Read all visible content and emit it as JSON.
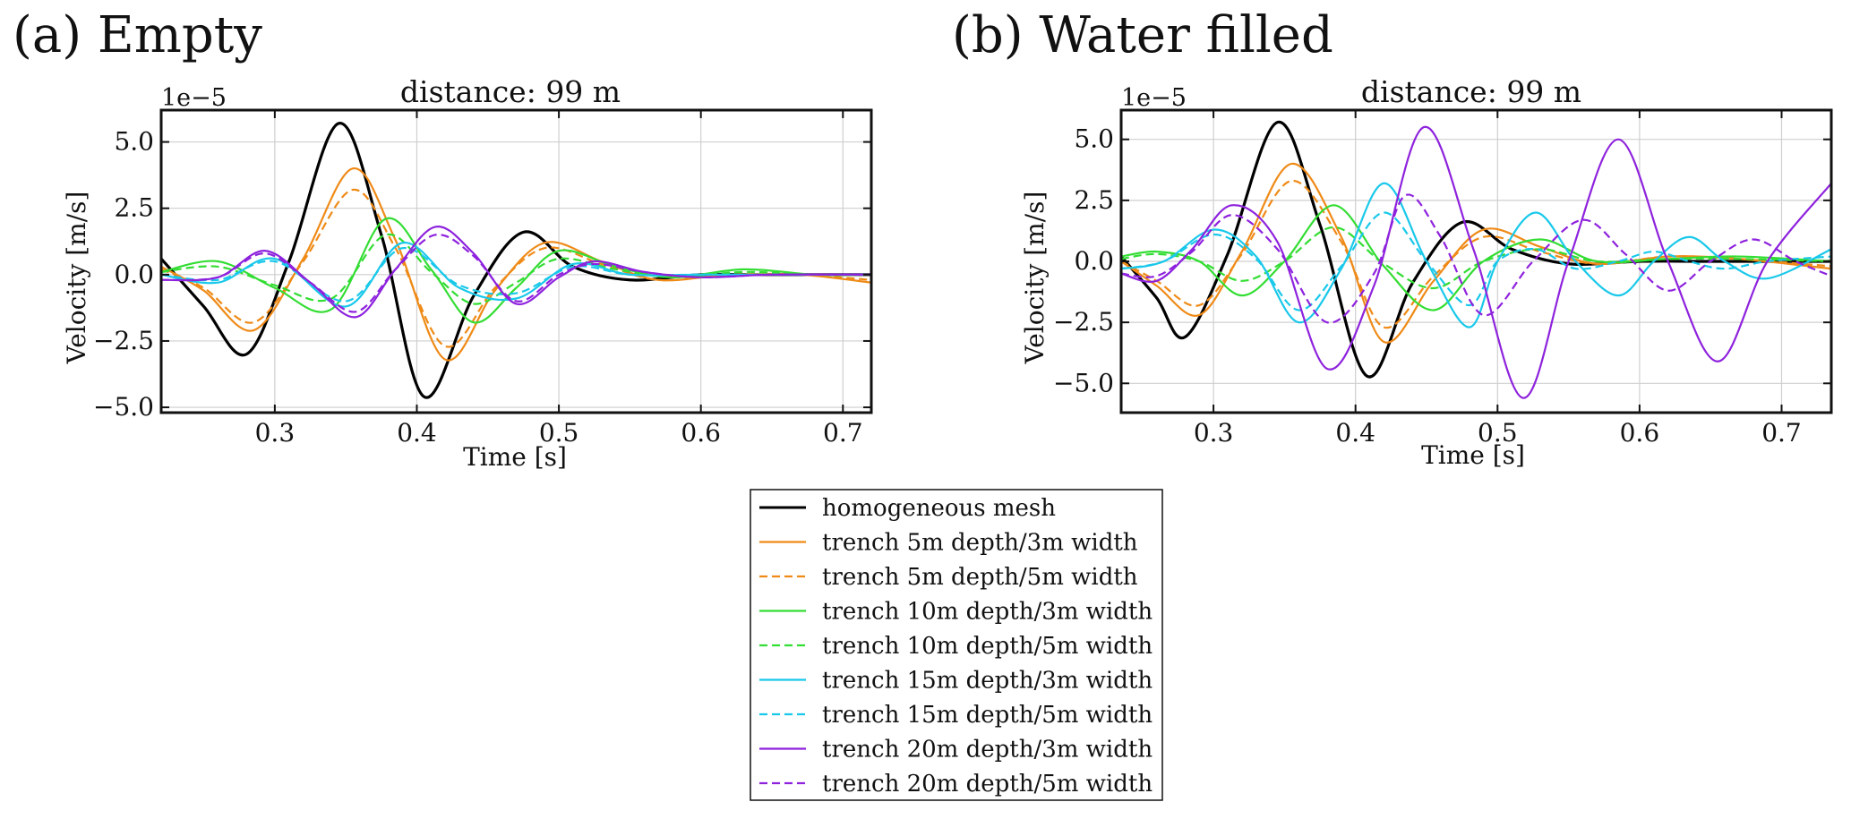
{
  "chart_data": [
    {
      "type": "line",
      "panel_label": "(a) Empty",
      "title": "distance: 99 m",
      "xlabel": "Time [s]",
      "ylabel": "Velocity [m/s]",
      "scale_label": "1e−5",
      "xlim": [
        0.22,
        0.72
      ],
      "ylim": [
        -5.2,
        6.2
      ],
      "xticks": [
        0.3,
        0.4,
        0.5,
        0.6,
        0.7
      ],
      "xtick_labels": [
        "0.3",
        "0.4",
        "0.5",
        "0.6",
        "0.7"
      ],
      "yticks": [
        -5.0,
        -2.5,
        0.0,
        2.5,
        5.0
      ],
      "ytick_labels": [
        "−5.0",
        "−2.5",
        "0.0",
        "2.5",
        "5.0"
      ],
      "grid": true,
      "series": [
        {
          "name": "homogeneous mesh",
          "color": "#000000",
          "dash": "solid",
          "x": [
            0.22,
            0.25,
            0.28,
            0.31,
            0.345,
            0.375,
            0.405,
            0.44,
            0.475,
            0.51,
            0.55,
            0.6,
            0.65,
            0.72
          ],
          "y": [
            0.6,
            -1.2,
            -3.0,
            0.5,
            5.7,
            1.5,
            -4.6,
            -0.8,
            1.6,
            0.3,
            -0.2,
            0.0,
            0.0,
            0.0
          ]
        },
        {
          "name": "trench 5m depth/3m width",
          "color": "#ef8a17",
          "dash": "solid",
          "x": [
            0.22,
            0.25,
            0.285,
            0.32,
            0.355,
            0.385,
            0.42,
            0.455,
            0.49,
            0.53,
            0.57,
            0.62,
            0.67,
            0.72
          ],
          "y": [
            0.3,
            -0.6,
            -2.1,
            0.6,
            4.0,
            1.3,
            -3.2,
            -0.6,
            1.2,
            0.5,
            -0.2,
            0.0,
            0.0,
            -0.3
          ]
        },
        {
          "name": "trench 5m depth/5m width",
          "color": "#ef8a17",
          "dash": "dashed",
          "x": [
            0.22,
            0.25,
            0.285,
            0.32,
            0.355,
            0.385,
            0.42,
            0.455,
            0.49,
            0.53,
            0.57,
            0.62,
            0.67,
            0.72
          ],
          "y": [
            0.2,
            -0.5,
            -1.8,
            0.5,
            3.2,
            1.0,
            -2.7,
            -0.5,
            1.0,
            0.4,
            -0.2,
            0.0,
            0.0,
            -0.2
          ]
        },
        {
          "name": "trench 10m depth/3m width",
          "color": "#33dd33",
          "dash": "solid",
          "x": [
            0.22,
            0.26,
            0.3,
            0.34,
            0.378,
            0.41,
            0.44,
            0.47,
            0.5,
            0.54,
            0.58,
            0.63,
            0.68,
            0.72
          ],
          "y": [
            0.1,
            0.5,
            -0.5,
            -1.3,
            2.1,
            0.2,
            -1.8,
            -0.5,
            0.9,
            0.3,
            -0.1,
            0.2,
            0.0,
            0.0
          ]
        },
        {
          "name": "trench 10m depth/5m width",
          "color": "#33dd33",
          "dash": "dashed",
          "x": [
            0.22,
            0.26,
            0.3,
            0.34,
            0.378,
            0.41,
            0.44,
            0.47,
            0.5,
            0.54,
            0.58,
            0.63,
            0.68,
            0.72
          ],
          "y": [
            0.1,
            0.3,
            -0.4,
            -0.9,
            1.5,
            0.1,
            -1.1,
            -0.3,
            0.6,
            0.2,
            -0.1,
            0.1,
            0.0,
            0.0
          ]
        },
        {
          "name": "trench 15m depth/3m width",
          "color": "#19c8ea",
          "dash": "solid",
          "x": [
            0.22,
            0.26,
            0.3,
            0.35,
            0.39,
            0.43,
            0.47,
            0.51,
            0.55,
            0.6,
            0.65,
            0.72
          ],
          "y": [
            0.0,
            -0.3,
            0.6,
            -1.2,
            1.2,
            -0.5,
            -0.9,
            0.4,
            0.0,
            0.0,
            0.0,
            0.0
          ]
        },
        {
          "name": "trench 15m depth/5m width",
          "color": "#19c8ea",
          "dash": "dashed",
          "x": [
            0.22,
            0.26,
            0.3,
            0.35,
            0.39,
            0.43,
            0.47,
            0.51,
            0.55,
            0.6,
            0.65,
            0.72
          ],
          "y": [
            0.0,
            -0.2,
            0.5,
            -1.0,
            1.0,
            -0.4,
            -0.7,
            0.3,
            0.0,
            0.0,
            0.0,
            0.0
          ]
        },
        {
          "name": "trench 20m depth/3m width",
          "color": "#8e22dd",
          "dash": "solid",
          "x": [
            0.22,
            0.26,
            0.293,
            0.325,
            0.357,
            0.385,
            0.413,
            0.44,
            0.47,
            0.5,
            0.525,
            0.56,
            0.6,
            0.65,
            0.72
          ],
          "y": [
            -0.2,
            -0.1,
            0.9,
            -0.3,
            -1.6,
            0.2,
            1.8,
            0.8,
            -1.1,
            -0.1,
            0.5,
            0.1,
            -0.1,
            0.0,
            0.0
          ]
        },
        {
          "name": "trench 20m depth/5m width",
          "color": "#8e22dd",
          "dash": "dashed",
          "x": [
            0.22,
            0.26,
            0.293,
            0.325,
            0.357,
            0.385,
            0.413,
            0.44,
            0.47,
            0.5,
            0.525,
            0.56,
            0.6,
            0.65,
            0.72
          ],
          "y": [
            -0.2,
            -0.1,
            0.8,
            -0.3,
            -1.4,
            0.2,
            1.5,
            0.7,
            -1.0,
            0.0,
            0.4,
            0.1,
            -0.1,
            0.0,
            0.0
          ]
        }
      ]
    },
    {
      "type": "line",
      "panel_label": "(b) Water filled",
      "title": "distance: 99 m",
      "xlabel": "Time [s]",
      "ylabel": "Velocity [m/s]",
      "scale_label": "1e−5",
      "xlim": [
        0.235,
        0.735
      ],
      "ylim": [
        -6.2,
        6.2
      ],
      "xticks": [
        0.3,
        0.4,
        0.5,
        0.6,
        0.7
      ],
      "xtick_labels": [
        "0.3",
        "0.4",
        "0.5",
        "0.6",
        "0.7"
      ],
      "yticks": [
        -5.0,
        -2.5,
        0.0,
        2.5,
        5.0
      ],
      "ytick_labels": [
        "−5.0",
        "−2.5",
        "0.0",
        "2.5",
        "5.0"
      ],
      "grid": true,
      "series": [
        {
          "name": "homogeneous mesh",
          "color": "#000000",
          "dash": "solid",
          "x": [
            0.235,
            0.26,
            0.28,
            0.31,
            0.345,
            0.375,
            0.408,
            0.44,
            0.475,
            0.51,
            0.55,
            0.6,
            0.65,
            0.735
          ],
          "y": [
            0.2,
            -1.5,
            -3.1,
            0.3,
            5.7,
            1.5,
            -4.7,
            -0.9,
            1.6,
            0.5,
            -0.1,
            0.0,
            0.0,
            0.0
          ]
        },
        {
          "name": "trench 5m depth/3m width",
          "color": "#ef8a17",
          "dash": "solid",
          "x": [
            0.235,
            0.26,
            0.29,
            0.32,
            0.355,
            0.39,
            0.42,
            0.455,
            0.49,
            0.53,
            0.57,
            0.62,
            0.67,
            0.735
          ],
          "y": [
            0.0,
            -1.0,
            -2.2,
            0.4,
            4.0,
            1.0,
            -3.3,
            -0.8,
            1.3,
            0.6,
            -0.1,
            0.2,
            0.1,
            -0.3
          ]
        },
        {
          "name": "trench 5m depth/5m width",
          "color": "#ef8a17",
          "dash": "dashed",
          "x": [
            0.235,
            0.26,
            0.29,
            0.32,
            0.355,
            0.39,
            0.42,
            0.455,
            0.49,
            0.53,
            0.57,
            0.62,
            0.67,
            0.735
          ],
          "y": [
            0.0,
            -0.8,
            -1.8,
            0.3,
            3.3,
            0.8,
            -2.7,
            -0.6,
            1.0,
            0.4,
            -0.1,
            0.2,
            0.1,
            -0.2
          ]
        },
        {
          "name": "trench 10m depth/3m width",
          "color": "#33dd33",
          "dash": "solid",
          "x": [
            0.235,
            0.26,
            0.29,
            0.32,
            0.35,
            0.385,
            0.42,
            0.455,
            0.49,
            0.53,
            0.57,
            0.62,
            0.67,
            0.735
          ],
          "y": [
            0.2,
            0.4,
            0.0,
            -1.4,
            0.0,
            2.3,
            -0.2,
            -2.0,
            0.0,
            0.9,
            0.0,
            0.1,
            0.2,
            0.0
          ]
        },
        {
          "name": "trench 10m depth/5m width",
          "color": "#33dd33",
          "dash": "dashed",
          "x": [
            0.235,
            0.26,
            0.29,
            0.32,
            0.35,
            0.385,
            0.42,
            0.455,
            0.49,
            0.53,
            0.57,
            0.62,
            0.67,
            0.735
          ],
          "y": [
            0.1,
            0.3,
            0.0,
            -0.8,
            0.0,
            1.4,
            -0.1,
            -1.1,
            0.0,
            0.5,
            0.0,
            0.1,
            0.1,
            0.0
          ]
        },
        {
          "name": "trench 15m depth/3m width",
          "color": "#19c8ea",
          "dash": "solid",
          "x": [
            0.235,
            0.265,
            0.3,
            0.33,
            0.36,
            0.39,
            0.42,
            0.45,
            0.48,
            0.5,
            0.527,
            0.555,
            0.585,
            0.61,
            0.635,
            0.66,
            0.69,
            0.735
          ],
          "y": [
            -0.3,
            0.0,
            1.3,
            0.2,
            -2.5,
            -0.3,
            3.2,
            0.0,
            -2.7,
            0.0,
            2.0,
            0.0,
            -1.4,
            0.0,
            1.0,
            0.0,
            -0.7,
            0.5
          ]
        },
        {
          "name": "trench 15m depth/5m width",
          "color": "#19c8ea",
          "dash": "dashed",
          "x": [
            0.235,
            0.265,
            0.3,
            0.33,
            0.36,
            0.39,
            0.42,
            0.45,
            0.48,
            0.5,
            0.527,
            0.555,
            0.585,
            0.61,
            0.635,
            0.66,
            0.69,
            0.735
          ],
          "y": [
            -0.3,
            0.0,
            1.1,
            0.1,
            -2.0,
            -0.2,
            2.0,
            0.0,
            -1.8,
            0.0,
            0.5,
            -0.3,
            0.0,
            0.4,
            0.0,
            -0.3,
            0.0,
            0.2
          ]
        },
        {
          "name": "trench 20m depth/3m width",
          "color": "#8e22dd",
          "dash": "solid",
          "x": [
            0.235,
            0.26,
            0.285,
            0.313,
            0.345,
            0.38,
            0.413,
            0.448,
            0.483,
            0.518,
            0.55,
            0.585,
            0.62,
            0.655,
            0.69,
            0.735
          ],
          "y": [
            -0.5,
            -0.8,
            0.5,
            2.3,
            0.8,
            -4.4,
            -1.0,
            5.5,
            0.5,
            -5.6,
            0.0,
            5.0,
            0.0,
            -4.1,
            0.0,
            3.2
          ]
        },
        {
          "name": "trench 20m depth/5m width",
          "color": "#8e22dd",
          "dash": "dashed",
          "x": [
            0.235,
            0.26,
            0.285,
            0.313,
            0.345,
            0.38,
            0.413,
            0.435,
            0.46,
            0.49,
            0.525,
            0.56,
            0.59,
            0.62,
            0.65,
            0.68,
            0.71,
            0.735
          ],
          "y": [
            -0.5,
            -0.6,
            0.4,
            1.9,
            0.5,
            -2.5,
            -0.5,
            2.7,
            1.0,
            -2.2,
            0.0,
            1.7,
            0.3,
            -1.2,
            0.0,
            0.9,
            0.0,
            -0.6
          ]
        }
      ]
    }
  ],
  "legend": {
    "entries": [
      {
        "label": "homogeneous mesh",
        "color": "#000000",
        "dash": "solid"
      },
      {
        "label": "trench 5m depth/3m width",
        "color": "#ef8a17",
        "dash": "solid"
      },
      {
        "label": "trench 5m depth/5m width",
        "color": "#ef8a17",
        "dash": "dashed"
      },
      {
        "label": "trench 10m depth/3m width",
        "color": "#33dd33",
        "dash": "solid"
      },
      {
        "label": "trench 10m depth/5m width",
        "color": "#33dd33",
        "dash": "dashed"
      },
      {
        "label": "trench 15m depth/3m width",
        "color": "#19c8ea",
        "dash": "solid"
      },
      {
        "label": "trench 15m depth/5m width",
        "color": "#19c8ea",
        "dash": "dashed"
      },
      {
        "label": "trench 20m depth/3m width",
        "color": "#8e22dd",
        "dash": "solid"
      },
      {
        "label": "trench 20m depth/5m width",
        "color": "#8e22dd",
        "dash": "dashed"
      }
    ]
  }
}
